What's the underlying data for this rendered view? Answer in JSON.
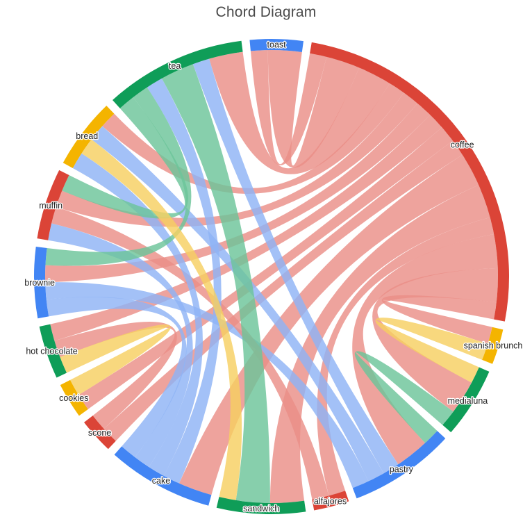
{
  "chart_data": {
    "type": "chord",
    "title": "Chord Diagram",
    "nodes": [
      {
        "name": "toast",
        "color": "#4285f4"
      },
      {
        "name": "coffee",
        "color": "#db4437"
      },
      {
        "name": "spanish brunch",
        "color": "#f4b400"
      },
      {
        "name": "medialuna",
        "color": "#0f9d58"
      },
      {
        "name": "pastry",
        "color": "#4285f4"
      },
      {
        "name": "alfajores",
        "color": "#db4437"
      },
      {
        "name": "sandwich",
        "color": "#0f9d58"
      },
      {
        "name": "cake",
        "color": "#4285f4"
      },
      {
        "name": "scone",
        "color": "#db4437"
      },
      {
        "name": "cookies",
        "color": "#f4b400"
      },
      {
        "name": "hot chocolate",
        "color": "#0f9d58"
      },
      {
        "name": "brownie",
        "color": "#4285f4"
      },
      {
        "name": "muffin",
        "color": "#db4437"
      },
      {
        "name": "bread",
        "color": "#f4b400"
      },
      {
        "name": "tea",
        "color": "#0f9d58"
      }
    ],
    "links": [
      {
        "source": "coffee",
        "target": "toast",
        "value": 2
      },
      {
        "source": "coffee",
        "target": "toast",
        "value": 1
      },
      {
        "source": "coffee",
        "target": "tea",
        "value": 2
      },
      {
        "source": "coffee",
        "target": "bread",
        "value": 1
      },
      {
        "source": "coffee",
        "target": "muffin",
        "value": 1
      },
      {
        "source": "coffee",
        "target": "brownie",
        "value": 1
      },
      {
        "source": "coffee",
        "target": "hot chocolate",
        "value": 1
      },
      {
        "source": "coffee",
        "target": "cookies",
        "value": 1
      },
      {
        "source": "coffee",
        "target": "scone",
        "value": 1
      },
      {
        "source": "coffee",
        "target": "cake",
        "value": 2
      },
      {
        "source": "coffee",
        "target": "sandwich",
        "value": 2
      },
      {
        "source": "coffee",
        "target": "alfajores",
        "value": 1
      },
      {
        "source": "coffee",
        "target": "pastry",
        "value": 2
      },
      {
        "source": "coffee",
        "target": "medialuna",
        "value": 2
      },
      {
        "source": "coffee",
        "target": "spanish brunch",
        "value": 1
      },
      {
        "source": "spanish brunch",
        "target": "medialuna",
        "value": 1
      },
      {
        "source": "medialuna",
        "target": "pastry",
        "value": 1
      },
      {
        "source": "pastry",
        "target": "tea",
        "value": 1
      },
      {
        "source": "pastry",
        "target": "bread",
        "value": 1
      },
      {
        "source": "pastry",
        "target": "brownie",
        "value": 1
      },
      {
        "source": "alfajores",
        "target": "muffin",
        "value": 1
      },
      {
        "source": "sandwich",
        "target": "tea",
        "value": 2
      },
      {
        "source": "cake",
        "target": "tea",
        "value": 1
      },
      {
        "source": "cake",
        "target": "bread",
        "value": 1
      },
      {
        "source": "cake",
        "target": "brownie",
        "value": 1
      },
      {
        "source": "cake",
        "target": "muffin",
        "value": 1
      },
      {
        "source": "scone",
        "target": "hot chocolate",
        "value": 1
      },
      {
        "source": "cookies",
        "target": "hot chocolate",
        "value": 1
      },
      {
        "source": "tea",
        "target": "muffin",
        "value": 1
      },
      {
        "source": "tea",
        "target": "brownie",
        "value": 1
      },
      {
        "source": "bread",
        "target": "sandwich",
        "value": 1
      }
    ]
  }
}
